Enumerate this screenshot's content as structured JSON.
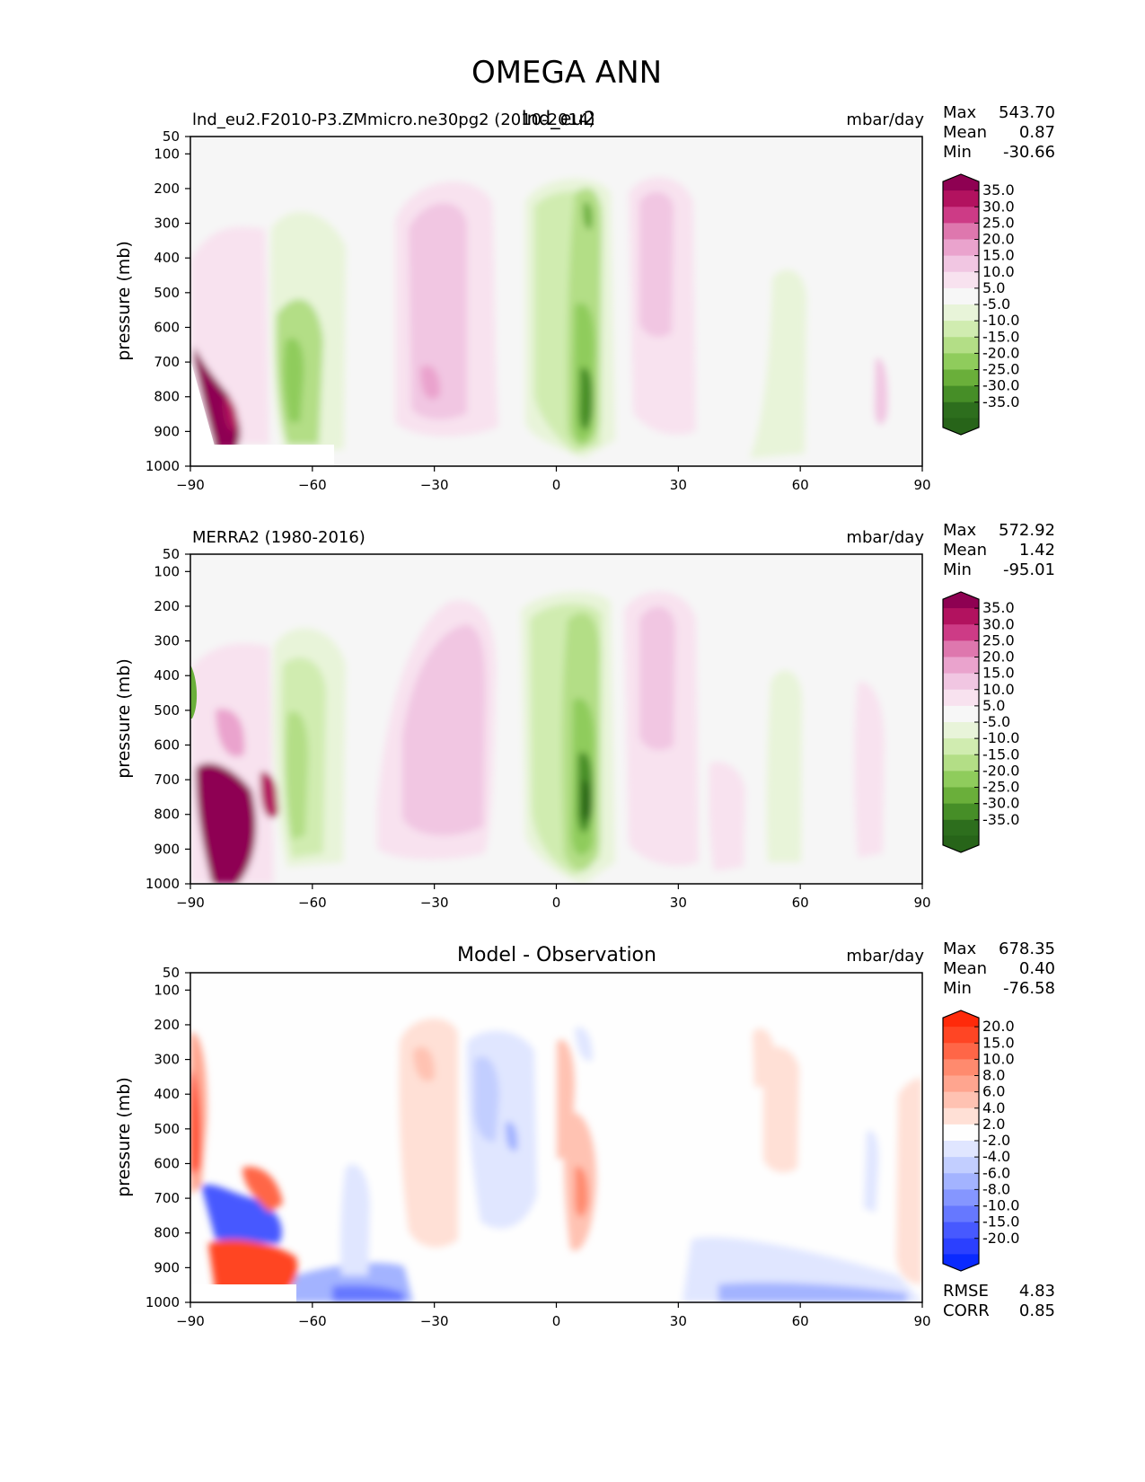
{
  "figure_title": "OMEGA ANN",
  "chart_data": [
    {
      "id": "test",
      "type": "heatmap",
      "title": "lnd_eu2",
      "left_label": "lnd_eu2.F2010-P3.ZMmicro.ne30pg2 (2010-2014)",
      "units": "mbar/day",
      "ylabel": "pressure (mb)",
      "xlim": [
        -90,
        90
      ],
      "ylim": [
        1000,
        50
      ],
      "xticks": [
        "−90",
        "−60",
        "−30",
        "0",
        "30",
        "60",
        "90"
      ],
      "yticks": [
        "50",
        "100",
        "200",
        "300",
        "400",
        "500",
        "600",
        "700",
        "800",
        "900",
        "1000"
      ],
      "stats": [
        {
          "k": "Max",
          "v": "543.70"
        },
        {
          "k": "Mean",
          "v": "0.87"
        },
        {
          "k": "Min",
          "v": "-30.66"
        }
      ],
      "colorbar": {
        "labels": [
          "35.0",
          "30.0",
          "25.0",
          "20.0",
          "15.0",
          "10.0",
          "5.0",
          "-5.0",
          "-10.0",
          "-15.0",
          "-20.0",
          "-25.0",
          "-30.0",
          "-35.0"
        ],
        "colors": [
          "#8e0152",
          "#b2125f",
          "#cd3b86",
          "#de77ae",
          "#eaa3cd",
          "#f1c6e2",
          "#f8e2ef",
          "#f7f7f7",
          "#e8f4d9",
          "#d0ecb0",
          "#b3de86",
          "#8fcc5c",
          "#6aaf3a",
          "#468e27",
          "#2d6e1d",
          "#276419"
        ]
      }
    },
    {
      "id": "ref",
      "type": "heatmap",
      "left_label": "MERRA2 (1980-2016)",
      "units": "mbar/day",
      "ylabel": "pressure (mb)",
      "xlim": [
        -90,
        90
      ],
      "ylim": [
        1000,
        50
      ],
      "xticks": [
        "−90",
        "−60",
        "−30",
        "0",
        "30",
        "60",
        "90"
      ],
      "yticks": [
        "50",
        "100",
        "200",
        "300",
        "400",
        "500",
        "600",
        "700",
        "800",
        "900",
        "1000"
      ],
      "stats": [
        {
          "k": "Max",
          "v": "572.92"
        },
        {
          "k": "Mean",
          "v": "1.42"
        },
        {
          "k": "Min",
          "v": "-95.01"
        }
      ],
      "colorbar": {
        "labels": [
          "35.0",
          "30.0",
          "25.0",
          "20.0",
          "15.0",
          "10.0",
          "5.0",
          "-5.0",
          "-10.0",
          "-15.0",
          "-20.0",
          "-25.0",
          "-30.0",
          "-35.0"
        ],
        "colors": [
          "#8e0152",
          "#b2125f",
          "#cd3b86",
          "#de77ae",
          "#eaa3cd",
          "#f1c6e2",
          "#f8e2ef",
          "#f7f7f7",
          "#e8f4d9",
          "#d0ecb0",
          "#b3de86",
          "#8fcc5c",
          "#6aaf3a",
          "#468e27",
          "#2d6e1d",
          "#276419"
        ]
      }
    },
    {
      "id": "diff",
      "type": "heatmap",
      "center_title": "Model - Observation",
      "units": "mbar/day",
      "ylabel": "pressure (mb)",
      "xlim": [
        -90,
        90
      ],
      "ylim": [
        1000,
        50
      ],
      "xticks": [
        "−90",
        "−60",
        "−30",
        "0",
        "30",
        "60",
        "90"
      ],
      "yticks": [
        "50",
        "100",
        "200",
        "300",
        "400",
        "500",
        "600",
        "700",
        "800",
        "900",
        "1000"
      ],
      "stats": [
        {
          "k": "Max",
          "v": "678.35"
        },
        {
          "k": "Mean",
          "v": "0.40"
        },
        {
          "k": "Min",
          "v": "-76.58"
        }
      ],
      "bottom_stats": [
        {
          "k": "RMSE",
          "v": "4.83"
        },
        {
          "k": "CORR",
          "v": "0.85"
        }
      ],
      "colorbar": {
        "labels": [
          "20.0",
          "15.0",
          "10.0",
          "8.0",
          "6.0",
          "4.0",
          "2.0",
          "-2.0",
          "-4.0",
          "-6.0",
          "-8.0",
          "-10.0",
          "-15.0",
          "-20.0"
        ],
        "colors": [
          "#ff2a0a",
          "#ff4524",
          "#ff6647",
          "#ff8a6e",
          "#ffa58f",
          "#ffc2b2",
          "#ffe0d6",
          "#fefefe",
          "#e0e6ff",
          "#c2ceff",
          "#a3b3ff",
          "#8596ff",
          "#6678ff",
          "#4759ff",
          "#2b40ff",
          "#0a2aff"
        ]
      }
    }
  ]
}
